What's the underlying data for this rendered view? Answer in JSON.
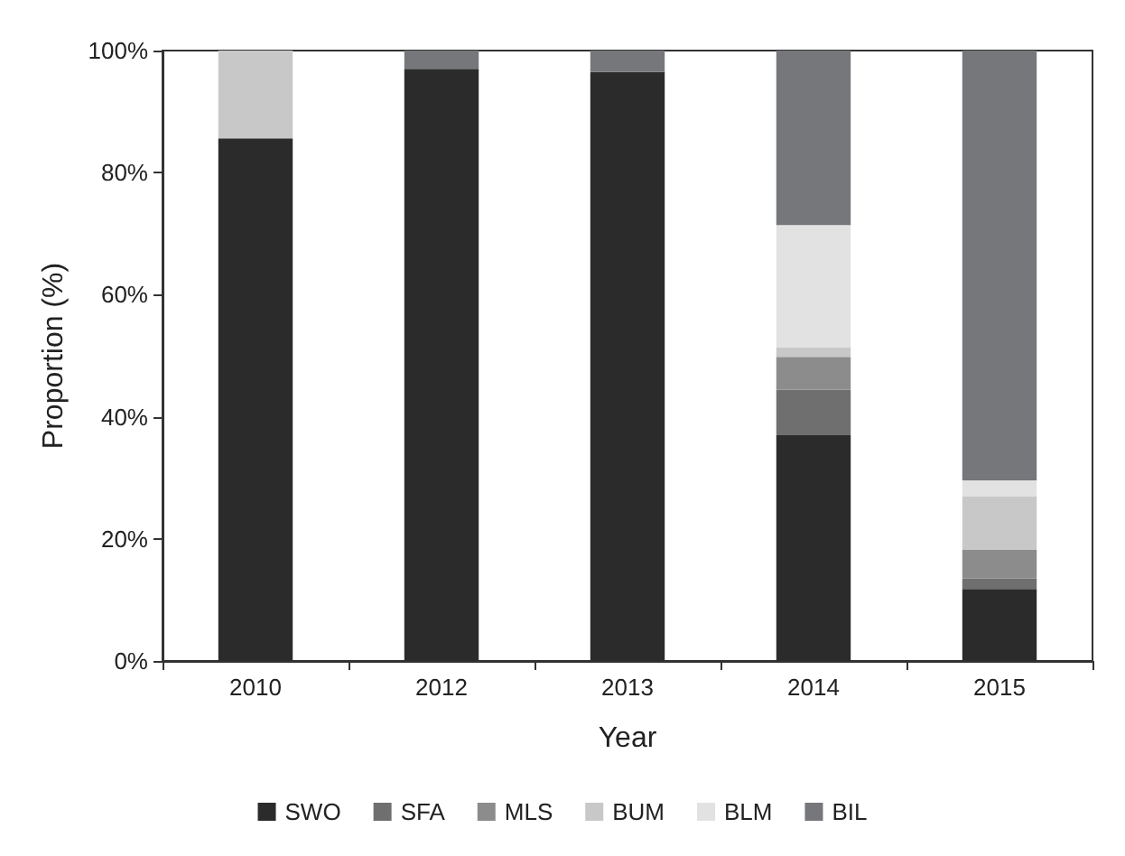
{
  "chart_data": {
    "type": "bar",
    "stacked": true,
    "xlabel": "Year",
    "ylabel": "Proportion (%)",
    "categories": [
      "2010",
      "2012",
      "2013",
      "2014",
      "2015"
    ],
    "series": [
      {
        "name": "SWO",
        "color": "#2b2b2b",
        "values": [
          85.6,
          97.0,
          96.5,
          37.0,
          11.8
        ]
      },
      {
        "name": "SFA",
        "color": "#6f6f6f",
        "values": [
          0,
          0,
          0,
          7.4,
          1.7
        ]
      },
      {
        "name": "MLS",
        "color": "#8c8c8c",
        "values": [
          0,
          0,
          0,
          5.4,
          4.7
        ]
      },
      {
        "name": "BUM",
        "color": "#c8c8c8",
        "values": [
          14.4,
          0,
          0,
          1.6,
          8.8
        ]
      },
      {
        "name": "BLM",
        "color": "#e2e2e2",
        "values": [
          0,
          0,
          0,
          20.0,
          2.6
        ]
      },
      {
        "name": "BIL",
        "color": "#76777b",
        "values": [
          0,
          3.0,
          3.5,
          28.6,
          70.4
        ]
      }
    ],
    "ylim": [
      0,
      100
    ],
    "yticks": [
      {
        "value": 0,
        "label": "0%"
      },
      {
        "value": 20,
        "label": "20%"
      },
      {
        "value": 40,
        "label": "40%"
      },
      {
        "value": 60,
        "label": "60%"
      },
      {
        "value": 80,
        "label": "80%"
      },
      {
        "value": 100,
        "label": "100%"
      }
    ],
    "grid": false,
    "legend": "bottom"
  }
}
